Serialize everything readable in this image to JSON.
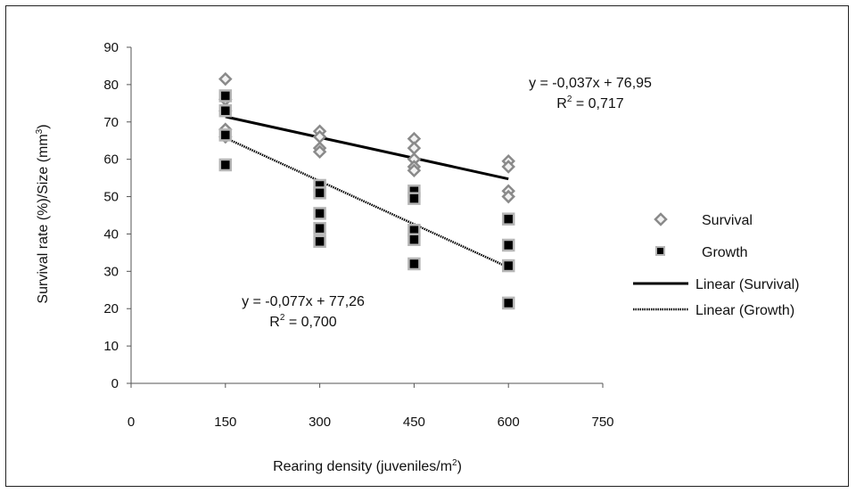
{
  "chart_data": {
    "type": "scatter",
    "xlabel": "Rearing density (juveniles/m",
    "xlabel_sup": "2",
    "xlabel_end": ")",
    "ylabel": "Survival rate (%)/Size (mm",
    "ylabel_sup": "3",
    "ylabel_end": ")",
    "xlim": [
      0,
      750
    ],
    "ylim": [
      0,
      90
    ],
    "xticks": [
      0,
      150,
      300,
      450,
      600,
      750
    ],
    "yticks": [
      0,
      10,
      20,
      30,
      40,
      50,
      60,
      70,
      80,
      90
    ],
    "grid": false,
    "legend_position": "right",
    "series": [
      {
        "name": "Survival",
        "marker": "diamond",
        "color": "#8a8a8a",
        "points": [
          [
            150,
            81.5
          ],
          [
            150,
            76
          ],
          [
            150,
            73
          ],
          [
            150,
            68
          ],
          [
            150,
            66
          ],
          [
            300,
            67.5
          ],
          [
            300,
            66
          ],
          [
            300,
            63
          ],
          [
            300,
            62
          ],
          [
            450,
            65.5
          ],
          [
            450,
            63
          ],
          [
            450,
            60
          ],
          [
            450,
            58
          ],
          [
            450,
            57
          ],
          [
            600,
            59.5
          ],
          [
            600,
            58
          ],
          [
            600,
            51.5
          ],
          [
            600,
            50
          ]
        ]
      },
      {
        "name": "Growth",
        "marker": "square",
        "color": "#000000",
        "edge": "#b5b5b5",
        "points": [
          [
            150,
            77
          ],
          [
            150,
            73
          ],
          [
            150,
            66.5
          ],
          [
            150,
            58.5
          ],
          [
            300,
            53
          ],
          [
            300,
            51
          ],
          [
            300,
            45.5
          ],
          [
            300,
            41.5
          ],
          [
            300,
            38
          ],
          [
            450,
            51.5
          ],
          [
            450,
            49.5
          ],
          [
            450,
            41
          ],
          [
            450,
            38.5
          ],
          [
            450,
            32
          ],
          [
            600,
            44
          ],
          [
            600,
            37
          ],
          [
            600,
            31.5
          ],
          [
            600,
            21.5
          ]
        ]
      }
    ],
    "trendlines": [
      {
        "name": "Linear (Survival)",
        "style": "solid",
        "slope": -0.037,
        "intercept": 76.95,
        "x_range": [
          150,
          600
        ],
        "equation": "y = -0,037x + 76,95",
        "r2_label": "R",
        "r2_sup": "2",
        "r2_value": " = 0,717"
      },
      {
        "name": "Linear (Growth)",
        "style": "dotted",
        "slope": -0.077,
        "intercept": 77.26,
        "x_range": [
          150,
          600
        ],
        "equation": "y = -0,077x + 77,26",
        "r2_label": "R",
        "r2_sup": "2",
        "r2_value": " = 0,700"
      }
    ],
    "legend": [
      {
        "label": "Survival",
        "kind": "diamond"
      },
      {
        "label": "Growth",
        "kind": "square"
      },
      {
        "label": "Linear (Survival)",
        "kind": "solid"
      },
      {
        "label": "Linear (Growth)",
        "kind": "dotted"
      }
    ]
  }
}
